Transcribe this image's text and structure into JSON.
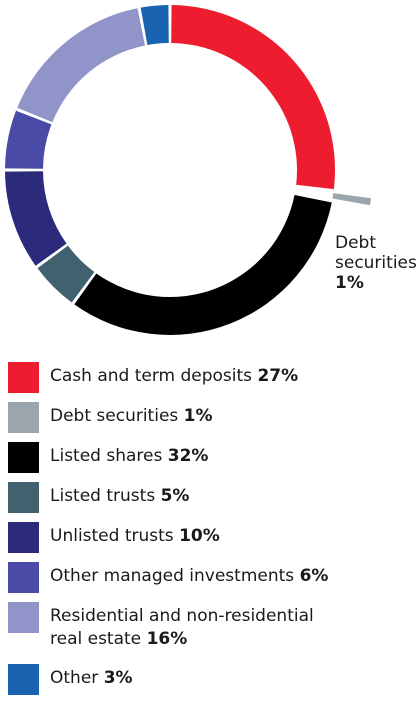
{
  "chart_data": {
    "type": "pie",
    "variant": "donut",
    "legend_placement": "bottom",
    "categories": [
      "Cash and term deposits",
      "Debt securities",
      "Listed shares",
      "Listed trusts",
      "Unlisted trusts",
      "Other managed investments",
      "Residential and non-residential real estate",
      "Other"
    ],
    "values": [
      27,
      1,
      32,
      5,
      10,
      6,
      16,
      3
    ],
    "value_labels": [
      "27%",
      "1%",
      "32%",
      "5%",
      "10%",
      "6%",
      "16%",
      "3%"
    ],
    "colors": [
      "#ed1c2e",
      "#9aa6ab",
      "#000000",
      "#42616f",
      "#2b2a7b",
      "#4a4ba6",
      "#9194c8",
      "#1a63b0"
    ],
    "exploded": [
      false,
      true,
      false,
      false,
      false,
      false,
      false,
      false
    ],
    "callout": {
      "category_index": 1,
      "lines": [
        "Debt",
        "securities"
      ],
      "value": "1%"
    }
  },
  "legend": [
    {
      "label": "Cash and term deposits",
      "value": "27%",
      "color": "#ed1c2e"
    },
    {
      "label": "Debt securities",
      "value": "1%",
      "color": "#9aa6ab"
    },
    {
      "label": "Listed shares",
      "value": "32%",
      "color": "#000000"
    },
    {
      "label": "Listed trusts",
      "value": "5%",
      "color": "#42616f"
    },
    {
      "label": "Unlisted trusts",
      "value": "10%",
      "color": "#2b2a7b"
    },
    {
      "label": "Other managed investments",
      "value": "6%",
      "color": "#4a4ba6"
    },
    {
      "label_lines": [
        "Residential and non-residential",
        "real estate"
      ],
      "value": "16%",
      "color": "#9194c8"
    },
    {
      "label": "Other",
      "value": "3%",
      "color": "#1a63b0"
    }
  ]
}
